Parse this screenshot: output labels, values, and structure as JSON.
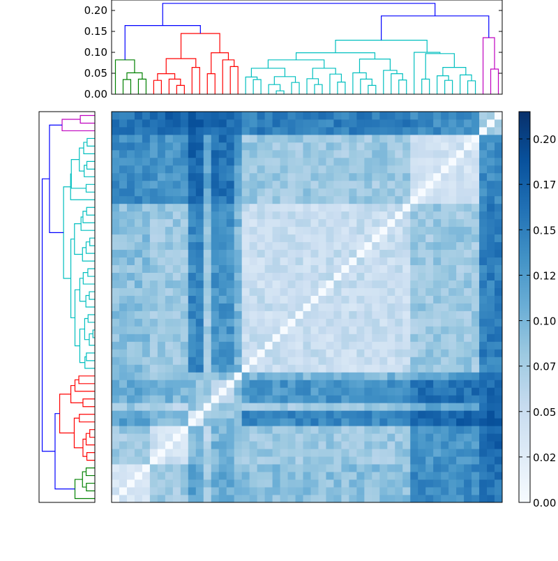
{
  "chart_data": {
    "type": "heatmap",
    "title": "",
    "colormap": "Blues",
    "colormap_stops": [
      "#f7fbff",
      "#deebf7",
      "#c6dbef",
      "#9ecae1",
      "#6baed6",
      "#4292c6",
      "#2171b5",
      "#08519c",
      "#08306b"
    ],
    "vmin": 0.0,
    "vmax": 0.215,
    "n_leaves": 51,
    "colorbar": {
      "tick_values": [
        0.0,
        0.025,
        0.05,
        0.075,
        0.1,
        0.125,
        0.15,
        0.175,
        0.2
      ],
      "tick_labels": [
        "0.00",
        "0.02",
        "0.05",
        "0.07",
        "0.10",
        "0.12",
        "0.15",
        "0.17",
        "0.20"
      ]
    },
    "top_dendrogram": {
      "ylim": [
        0,
        0.225
      ],
      "tick_values": [
        0,
        0.05,
        0.1,
        0.15,
        0.2
      ],
      "tick_labels": [
        "0.00",
        "0.05",
        "0.10",
        "0.15",
        "0.20"
      ]
    },
    "left_dendrogram": {
      "xlim": [
        0,
        0.23
      ]
    },
    "link_colors": {
      "g": "#008000",
      "r": "#ff0000",
      "c": "#00bfbf",
      "m": "#bf00bf",
      "b": "#0000ff"
    },
    "linkage": [
      [
        1,
        2,
        0.035,
        "g"
      ],
      [
        3,
        4,
        0.036,
        "g"
      ],
      [
        51,
        52,
        0.051,
        "g"
      ],
      [
        0,
        53,
        0.082,
        "g"
      ],
      [
        5,
        6,
        0.033,
        "r"
      ],
      [
        8,
        9,
        0.021,
        "r"
      ],
      [
        7,
        56,
        0.036,
        "r"
      ],
      [
        55,
        57,
        0.049,
        "r"
      ],
      [
        10,
        11,
        0.064,
        "r"
      ],
      [
        58,
        59,
        0.085,
        "r"
      ],
      [
        12,
        13,
        0.049,
        "r"
      ],
      [
        15,
        16,
        0.066,
        "r"
      ],
      [
        14,
        62,
        0.082,
        "r"
      ],
      [
        61,
        63,
        0.099,
        "r"
      ],
      [
        60,
        64,
        0.145,
        "r"
      ],
      [
        54,
        65,
        0.164,
        "b"
      ],
      [
        18,
        19,
        0.035,
        "c"
      ],
      [
        17,
        67,
        0.041,
        "c"
      ],
      [
        21,
        22,
        0.008,
        "c"
      ],
      [
        20,
        69,
        0.023,
        "c"
      ],
      [
        23,
        24,
        0.028,
        "c"
      ],
      [
        70,
        71,
        0.042,
        "c"
      ],
      [
        68,
        72,
        0.062,
        "c"
      ],
      [
        26,
        27,
        0.023,
        "c"
      ],
      [
        25,
        74,
        0.037,
        "c"
      ],
      [
        29,
        30,
        0.029,
        "c"
      ],
      [
        28,
        76,
        0.048,
        "c"
      ],
      [
        75,
        77,
        0.062,
        "c"
      ],
      [
        73,
        78,
        0.082,
        "c"
      ],
      [
        33,
        34,
        0.021,
        "c"
      ],
      [
        32,
        80,
        0.036,
        "c"
      ],
      [
        31,
        81,
        0.051,
        "c"
      ],
      [
        37,
        38,
        0.034,
        "c"
      ],
      [
        36,
        83,
        0.049,
        "c"
      ],
      [
        35,
        84,
        0.057,
        "c"
      ],
      [
        82,
        85,
        0.084,
        "c"
      ],
      [
        79,
        86,
        0.099,
        "c"
      ],
      [
        40,
        41,
        0.036,
        "c"
      ],
      [
        43,
        44,
        0.033,
        "c"
      ],
      [
        42,
        89,
        0.044,
        "c"
      ],
      [
        46,
        47,
        0.032,
        "c"
      ],
      [
        45,
        91,
        0.046,
        "c"
      ],
      [
        90,
        92,
        0.064,
        "c"
      ],
      [
        88,
        93,
        0.097,
        "c"
      ],
      [
        39,
        94,
        0.1,
        "c"
      ],
      [
        87,
        95,
        0.129,
        "c"
      ],
      [
        49,
        50,
        0.06,
        "m"
      ],
      [
        48,
        97,
        0.135,
        "m"
      ],
      [
        96,
        98,
        0.187,
        "b"
      ],
      [
        66,
        99,
        0.217,
        "b"
      ]
    ],
    "leaf_blocks": [
      [
        0,
        4
      ],
      [
        5,
        9
      ],
      [
        10,
        11
      ],
      [
        12,
        12
      ],
      [
        13,
        15
      ],
      [
        16,
        16
      ],
      [
        17,
        38
      ],
      [
        39,
        47
      ],
      [
        48,
        50
      ]
    ],
    "block_mean_values": [
      [
        0.04,
        0.08,
        0.12,
        0.08,
        0.11,
        0.09,
        0.09,
        0.14,
        0.16
      ],
      [
        0.08,
        0.04,
        0.1,
        0.07,
        0.1,
        0.08,
        0.08,
        0.13,
        0.17
      ],
      [
        0.12,
        0.1,
        0.03,
        0.09,
        0.09,
        0.09,
        0.14,
        0.17,
        0.18
      ],
      [
        0.08,
        0.07,
        0.09,
        0.0,
        0.08,
        0.07,
        0.08,
        0.11,
        0.16
      ],
      [
        0.11,
        0.1,
        0.09,
        0.08,
        0.05,
        0.09,
        0.13,
        0.16,
        0.17
      ],
      [
        0.09,
        0.08,
        0.09,
        0.07,
        0.09,
        0.0,
        0.1,
        0.12,
        0.16
      ],
      [
        0.09,
        0.08,
        0.14,
        0.08,
        0.13,
        0.1,
        0.05,
        0.08,
        0.15
      ],
      [
        0.14,
        0.13,
        0.17,
        0.11,
        0.16,
        0.12,
        0.08,
        0.04,
        0.14
      ],
      [
        0.16,
        0.17,
        0.18,
        0.16,
        0.17,
        0.16,
        0.15,
        0.14,
        0.07
      ]
    ],
    "diagonal_value": 0.0
  }
}
